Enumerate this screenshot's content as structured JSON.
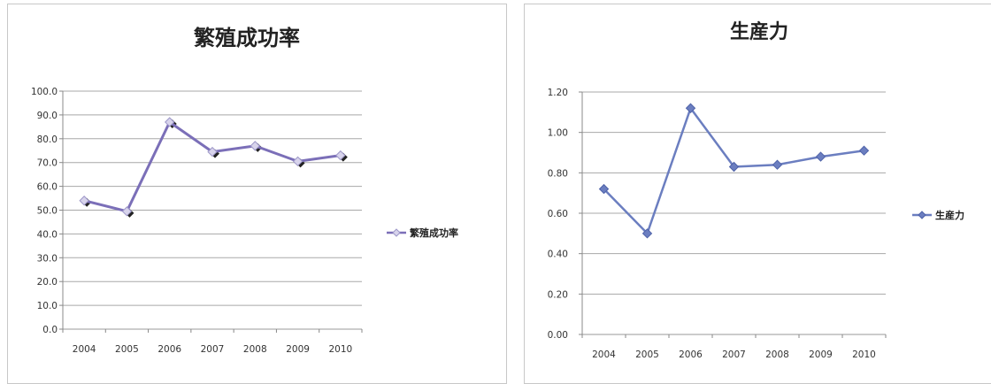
{
  "chart_data": [
    {
      "type": "line",
      "title": "繁殖成功率",
      "categories": [
        "2004",
        "2005",
        "2006",
        "2007",
        "2008",
        "2009",
        "2010"
      ],
      "series": [
        {
          "name": "繁殖成功率",
          "values": [
            54.0,
            49.5,
            87.0,
            74.5,
            77.0,
            70.5,
            73.0
          ]
        }
      ],
      "y_ticks": [
        "0.0",
        "10.0",
        "20.0",
        "30.0",
        "40.0",
        "50.0",
        "60.0",
        "70.0",
        "80.0",
        "90.0",
        "100.0"
      ],
      "ylim": [
        0,
        100
      ],
      "grid": true,
      "legend_position": "right",
      "color": "#7b6fb8"
    },
    {
      "type": "line",
      "title": "生産力",
      "categories": [
        "2004",
        "2005",
        "2006",
        "2007",
        "2008",
        "2009",
        "2010"
      ],
      "series": [
        {
          "name": "生産力",
          "values": [
            0.72,
            0.5,
            1.12,
            0.83,
            0.84,
            0.88,
            0.91
          ]
        }
      ],
      "y_ticks": [
        "0.00",
        "0.20",
        "0.40",
        "0.60",
        "0.80",
        "1.00",
        "1.20"
      ],
      "ylim": [
        0,
        1.2
      ],
      "grid": true,
      "legend_position": "right",
      "color": "#6b7ec0"
    }
  ]
}
